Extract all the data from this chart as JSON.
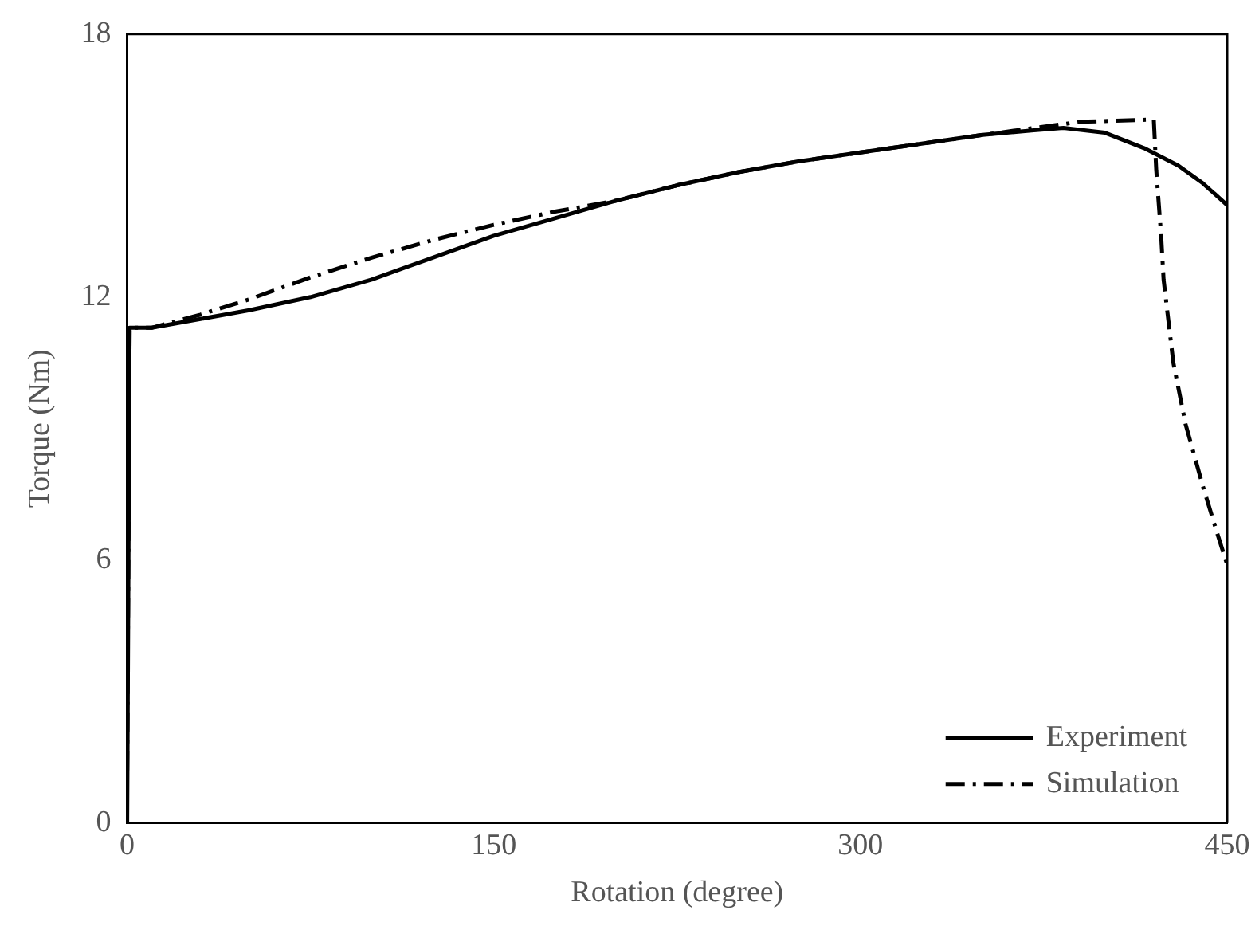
{
  "chart_data": {
    "type": "line",
    "xlabel": "Rotation (degree)",
    "ylabel": "Torque (Nm)",
    "xlim": [
      0,
      450
    ],
    "xticks": [
      0,
      150,
      300,
      450
    ],
    "ylim": [
      0,
      18
    ],
    "yticks": [
      0,
      6,
      12,
      18
    ],
    "grid": false,
    "legend": "bottom right",
    "marker": "none",
    "series": [
      {
        "name": "Experiment",
        "color": "#000000",
        "line_style": "solid",
        "x": [
          0,
          1,
          10,
          30,
          50,
          75,
          100,
          125,
          150,
          175,
          200,
          225,
          250,
          275,
          300,
          325,
          350,
          370,
          383,
          400,
          416,
          430,
          440,
          450
        ],
        "values": [
          0,
          11.3,
          11.3,
          11.5,
          11.7,
          12.0,
          12.4,
          12.9,
          13.4,
          13.8,
          14.2,
          14.55,
          14.85,
          15.1,
          15.3,
          15.5,
          15.7,
          15.8,
          15.86,
          15.75,
          15.4,
          15.0,
          14.6,
          14.1
        ]
      },
      {
        "name": "Simulation",
        "color": "#000000",
        "line_style": "dashed",
        "x": [
          0,
          1,
          10,
          30,
          50,
          75,
          100,
          125,
          150,
          175,
          200,
          225,
          250,
          275,
          300,
          325,
          350,
          370,
          390,
          420,
          421,
          423,
          424,
          428,
          433,
          440,
          446,
          450
        ],
        "values": [
          1.2,
          11.3,
          11.3,
          11.6,
          11.95,
          12.45,
          12.9,
          13.3,
          13.65,
          13.95,
          14.2,
          14.55,
          14.85,
          15.1,
          15.3,
          15.5,
          15.7,
          15.85,
          16.0,
          16.05,
          14.9,
          13.4,
          12.4,
          10.5,
          9.1,
          7.7,
          6.6,
          5.9
        ]
      }
    ]
  }
}
